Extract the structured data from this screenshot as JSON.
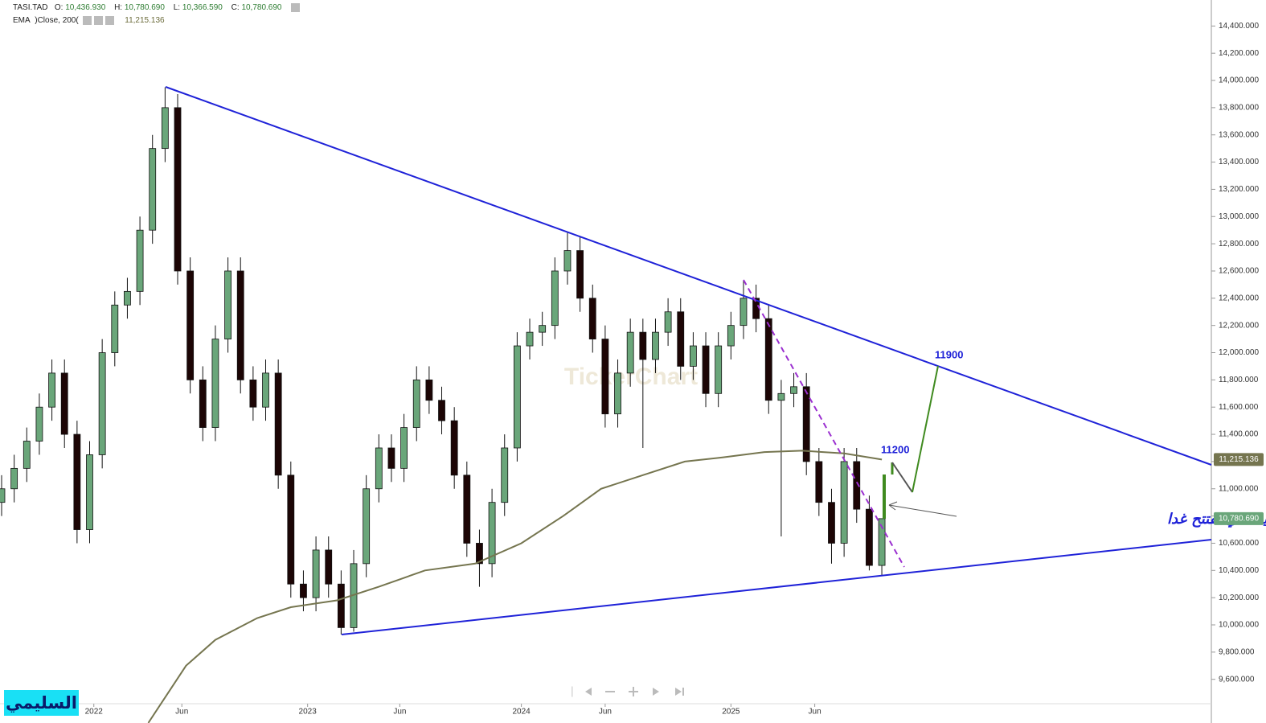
{
  "chart_data": {
    "type": "candlestick",
    "legend": {
      "symbol": "TASI.TAD",
      "o_label": "O:",
      "open": "10,436.930",
      "h_label": "H:",
      "high": "10,780.690",
      "l_label": "L:",
      "low": "10,366.590",
      "c_label": "C:",
      "close": "10,780.690",
      "ema_name": "EMA",
      "ema_params": ")Close, 200(",
      "ema_value": "11,215.136"
    },
    "watermark": "TickerChart",
    "x": [
      0,
      3,
      6,
      9,
      12,
      15,
      18,
      21,
      24,
      27,
      30,
      33,
      36,
      39,
      42,
      45,
      48,
      51,
      54,
      57,
      60,
      63,
      66,
      69,
      72,
      75,
      78,
      81,
      84,
      87,
      90,
      93,
      96,
      99,
      102,
      105,
      108,
      111,
      114,
      117,
      120,
      123,
      126,
      129,
      132,
      135,
      138,
      141,
      144,
      147,
      150,
      153,
      156,
      159,
      162,
      165,
      168,
      171,
      174,
      177,
      180,
      183,
      186,
      189,
      192,
      195,
      198,
      201,
      204,
      207,
      210
    ],
    "open": [
      10900,
      11000,
      11150,
      11350,
      11600,
      11850,
      11400,
      10700,
      11250,
      12000,
      12350,
      12450,
      12900,
      13500,
      13800,
      12600,
      11800,
      11450,
      12100,
      12600,
      11800,
      11600,
      11850,
      11100,
      10300,
      10200,
      10550,
      10300,
      9980,
      10450,
      11000,
      11300,
      11150,
      11450,
      11800,
      11650,
      11500,
      11100,
      10600,
      10450,
      10900,
      11300,
      12050,
      12150,
      12200,
      12600,
      12750,
      12400,
      12100,
      11550,
      11850,
      12150,
      11950,
      12150,
      12300,
      11900,
      12050,
      11700,
      12050,
      12200,
      12400,
      12250,
      11650,
      11700,
      11750,
      11200,
      10900,
      10600,
      11200,
      10850,
      10436.93
    ],
    "high": [
      11100,
      11250,
      11450,
      11700,
      11950,
      11950,
      11500,
      11350,
      12100,
      12450,
      12550,
      13000,
      13600,
      13950,
      13900,
      12700,
      11900,
      12200,
      12700,
      12700,
      11900,
      11950,
      11950,
      11200,
      10400,
      10650,
      10650,
      10400,
      10550,
      11100,
      11400,
      11400,
      11550,
      11900,
      11900,
      11750,
      11600,
      11200,
      10700,
      11000,
      11400,
      12150,
      12250,
      12300,
      12700,
      12880,
      12850,
      12500,
      12200,
      11950,
      12250,
      12250,
      12250,
      12400,
      12400,
      12150,
      12150,
      12150,
      12300,
      12530,
      12500,
      12350,
      11800,
      11850,
      11850,
      11300,
      11000,
      11300,
      11300,
      10950,
      10780.69
    ],
    "low": [
      10800,
      10900,
      11050,
      11250,
      11500,
      11300,
      10600,
      10600,
      11150,
      11900,
      12250,
      12350,
      12800,
      13400,
      12500,
      11700,
      11350,
      11350,
      12000,
      11700,
      11500,
      11500,
      11000,
      10200,
      10100,
      10100,
      10200,
      9930,
      9950,
      10350,
      10900,
      11050,
      11050,
      11350,
      11550,
      11400,
      11000,
      10500,
      10280,
      10350,
      10800,
      11200,
      11950,
      12050,
      12100,
      12500,
      12300,
      12000,
      11450,
      11450,
      11750,
      11300,
      11850,
      12050,
      11800,
      11800,
      11600,
      11600,
      11950,
      12100,
      12150,
      11550,
      10650,
      11600,
      11100,
      10800,
      10450,
      10500,
      10750,
      10400,
      10366.59
    ],
    "close": [
      11000,
      11150,
      11350,
      11600,
      11850,
      11400,
      10700,
      11250,
      12000,
      12350,
      12450,
      12900,
      13500,
      13800,
      12600,
      11800,
      11450,
      12100,
      12600,
      11800,
      11600,
      11850,
      11100,
      10300,
      10200,
      10550,
      10300,
      9980,
      10450,
      11000,
      11300,
      11150,
      11450,
      11800,
      11650,
      11500,
      11100,
      10600,
      10450,
      10900,
      11300,
      12050,
      12150,
      12200,
      12600,
      12750,
      12400,
      12100,
      11550,
      11850,
      12150,
      11950,
      12150,
      12300,
      11900,
      12050,
      11700,
      12050,
      12200,
      12400,
      12250,
      11650,
      11700,
      11750,
      11200,
      10900,
      10600,
      11200,
      10850,
      10436.93,
      10780.69
    ],
    "up_color": "#6aa67a",
    "down_color": "#1c0505",
    "ema": {
      "name": "EMA",
      "color": "#75754f",
      "x": [
        35,
        44,
        51,
        61,
        69,
        80,
        90,
        101,
        113,
        124,
        134,
        143,
        153,
        163,
        172,
        182,
        191,
        201,
        210
      ],
      "values": [
        9280,
        9700,
        9890,
        10050,
        10130,
        10180,
        10280,
        10400,
        10450,
        10600,
        10800,
        11000,
        11100,
        11200,
        11230,
        11270,
        11280,
        11260,
        11215.136
      ]
    },
    "xlim": [
      0,
      289
    ],
    "ylim": [
      9421,
      14591
    ],
    "xticks": [
      {
        "value": 22,
        "label": "2022"
      },
      {
        "value": 43,
        "label": "Jun"
      },
      {
        "value": 73,
        "label": "2023"
      },
      {
        "value": 95,
        "label": "Jun"
      },
      {
        "value": 124,
        "label": "2024"
      },
      {
        "value": 144,
        "label": "Jun"
      },
      {
        "value": 174,
        "label": "2025"
      },
      {
        "value": 194,
        "label": "Jun"
      }
    ],
    "yticks": [
      {
        "value": 9600,
        "label": "9,600.000"
      },
      {
        "value": 9800,
        "label": "9,800.000"
      },
      {
        "value": 10000,
        "label": "10,000.000"
      },
      {
        "value": 10200,
        "label": "10,200.000"
      },
      {
        "value": 10400,
        "label": "10,400.000"
      },
      {
        "value": 10600,
        "label": "10,600.000"
      },
      {
        "value": 10800,
        "label": "10,800.000"
      },
      {
        "value": 11000,
        "label": "11,000.000"
      },
      {
        "value": 11200,
        "label": "11,200.000"
      },
      {
        "value": 11400,
        "label": "11,400.000"
      },
      {
        "value": 11600,
        "label": "11,600.000"
      },
      {
        "value": 11800,
        "label": "11,800.000"
      },
      {
        "value": 12000,
        "label": "12,000.000"
      },
      {
        "value": 12200,
        "label": "12,200.000"
      },
      {
        "value": 12400,
        "label": "12,400.000"
      },
      {
        "value": 12600,
        "label": "12,600.000"
      },
      {
        "value": 12800,
        "label": "12,800.000"
      },
      {
        "value": 13000,
        "label": "13,000.000"
      },
      {
        "value": 13200,
        "label": "13,200.000"
      },
      {
        "value": 13400,
        "label": "13,400.000"
      },
      {
        "value": 13600,
        "label": "13,600.000"
      },
      {
        "value": 13800,
        "label": "13,800.000"
      },
      {
        "value": 14000,
        "label": "14,000.000"
      },
      {
        "value": 14200,
        "label": "14,200.000"
      },
      {
        "value": 14400,
        "label": "14,400.000"
      }
    ],
    "annotations": {
      "target_high": "11900",
      "target_low": "11200",
      "note": "شمعتنا الاسبوعيه التي تفتتح غدا",
      "signature": "السليمي"
    }
  }
}
